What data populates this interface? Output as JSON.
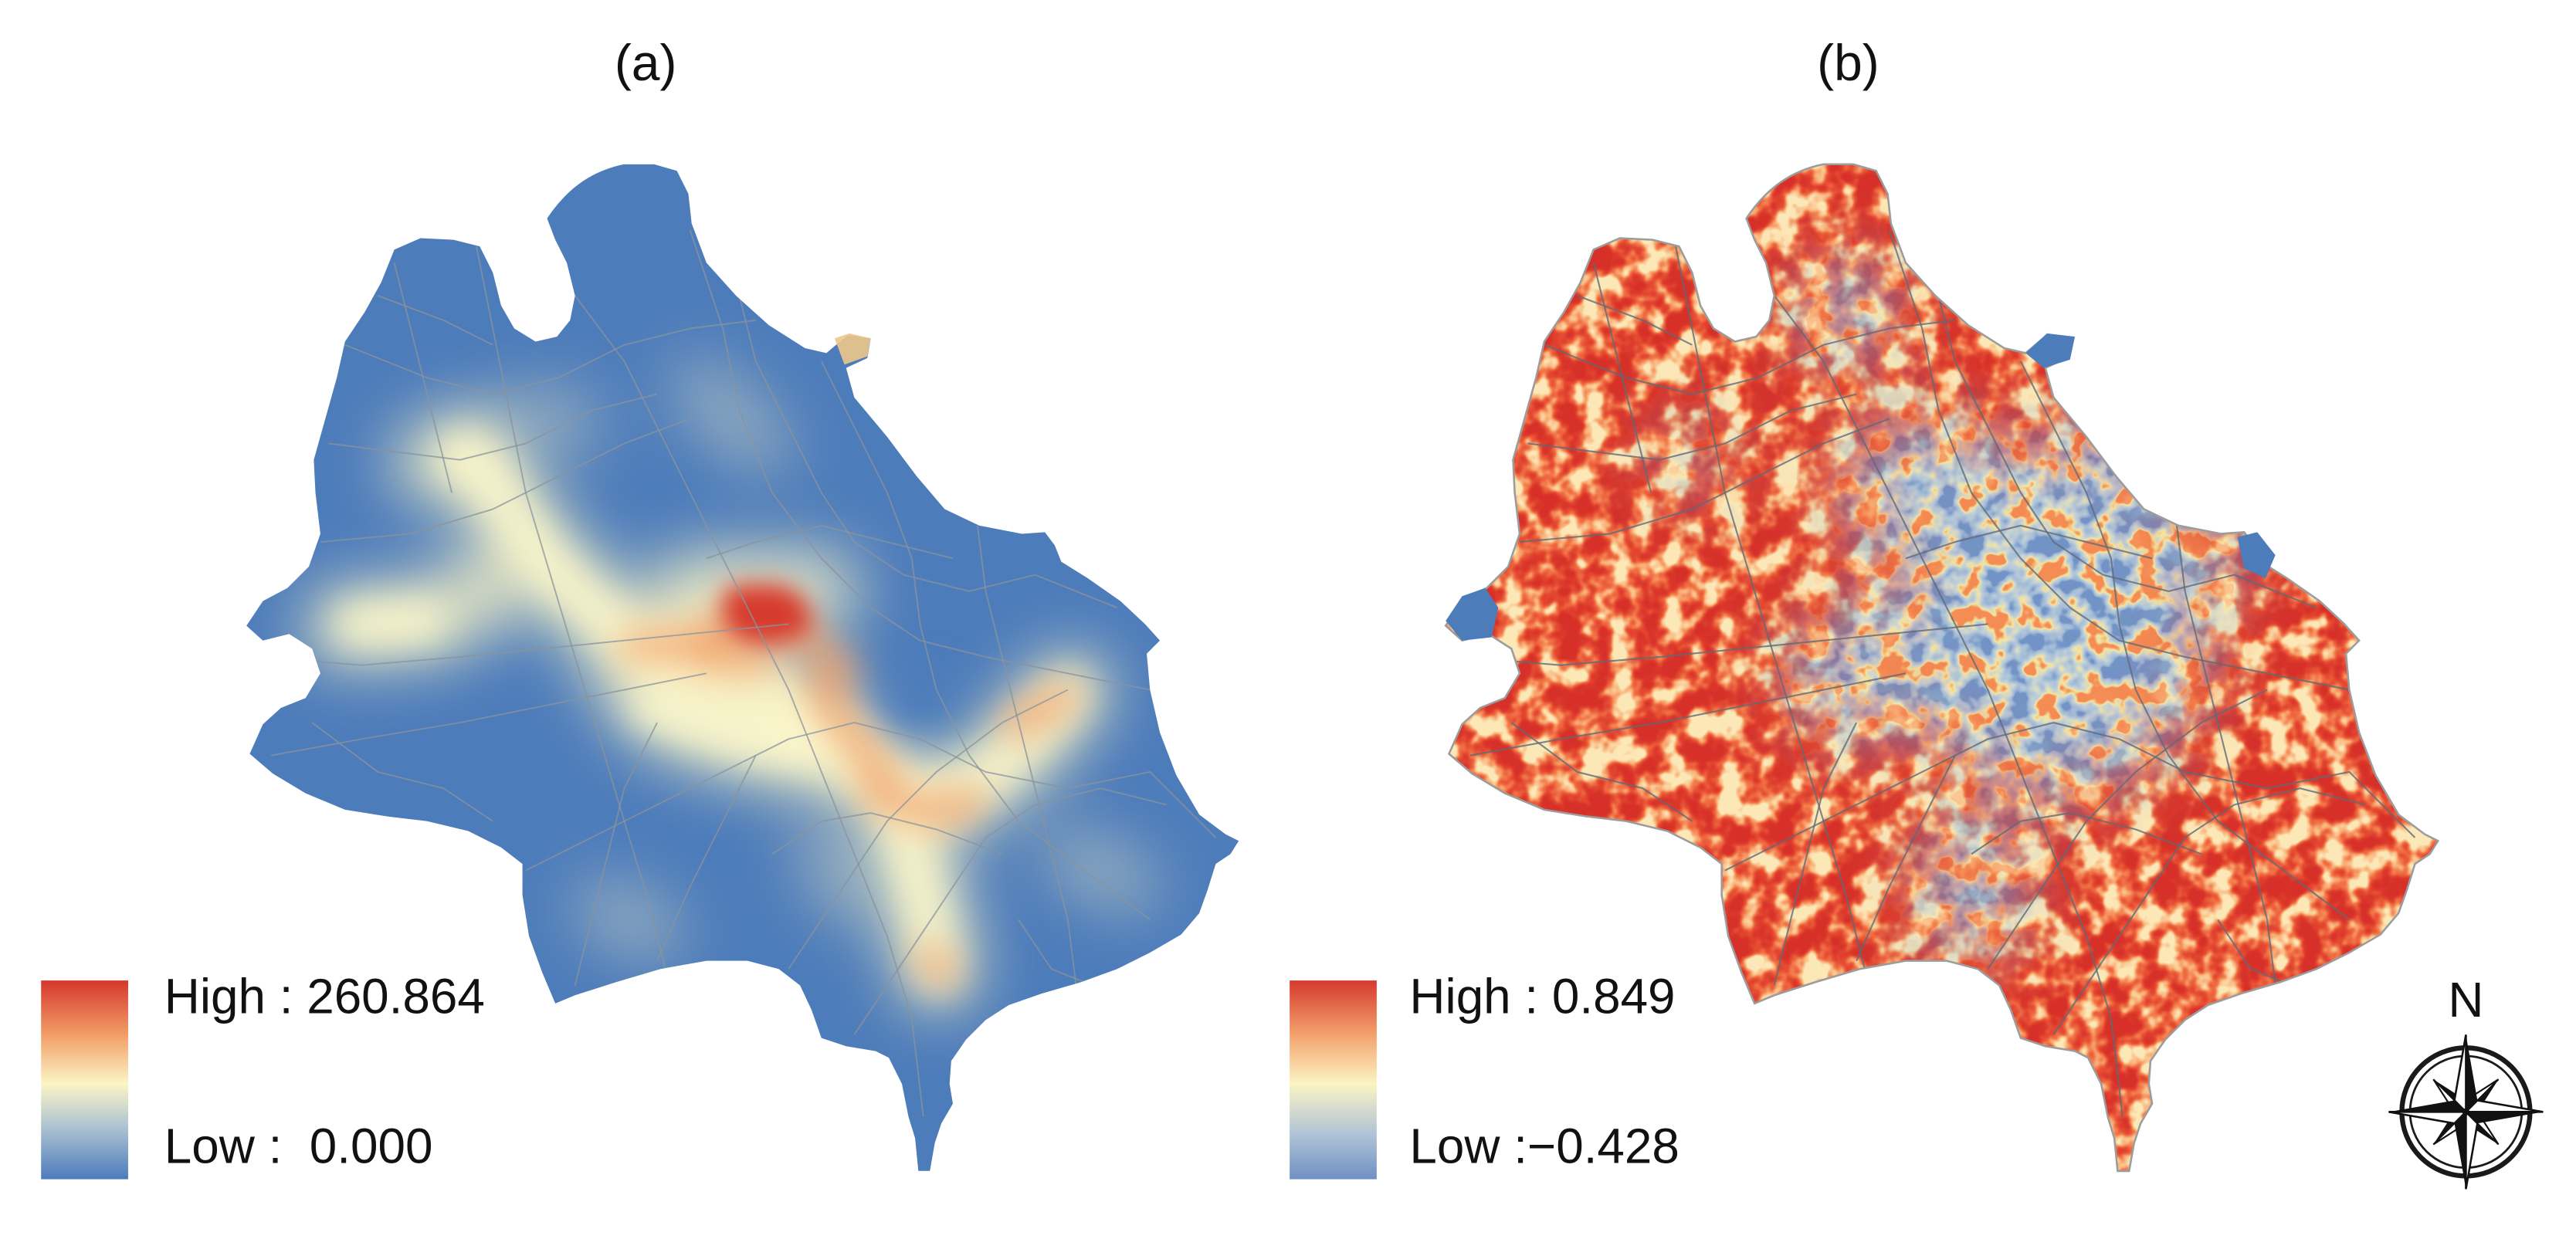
{
  "figure": {
    "panels": [
      {
        "label": "(a)",
        "legend": {
          "high": "High : 260.864",
          "low": "Low :  0.000",
          "ramp": [
            "#d6372c",
            "#f2a06a",
            "#fbf5c6",
            "#a9bfd1",
            "#4c7bbb"
          ]
        }
      },
      {
        "label": "(b)",
        "legend": {
          "high": "High : 0.849",
          "low": "Low :−0.428",
          "ramp": [
            "#d6392e",
            "#f3a56e",
            "#fbf4c4",
            "#aec2d6",
            "#6f90c4"
          ]
        }
      }
    ],
    "north_arrow": {
      "label": "N",
      "icon": "compass-rose-icon"
    },
    "colors": {
      "base_blue": "#4d7cbb",
      "hot_red": "#d63a2d",
      "warm_orange": "#f2a36c",
      "cream": "#fbf7cc",
      "road_gray": "#8a939d"
    }
  }
}
